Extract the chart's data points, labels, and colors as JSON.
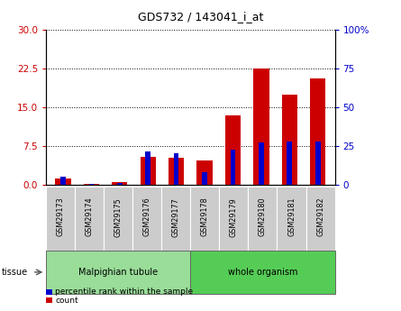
{
  "title": "GDS732 / 143041_i_at",
  "samples": [
    "GSM29173",
    "GSM29174",
    "GSM29175",
    "GSM29176",
    "GSM29177",
    "GSM29178",
    "GSM29179",
    "GSM29180",
    "GSM29181",
    "GSM29182"
  ],
  "count_values": [
    1.2,
    0.3,
    0.5,
    5.5,
    5.2,
    4.8,
    13.5,
    22.5,
    17.5,
    20.5
  ],
  "percentile_values": [
    5.5,
    1.0,
    1.5,
    21.5,
    20.5,
    8.0,
    22.5,
    27.5,
    28.0,
    28.0
  ],
  "left_ylim": [
    0,
    30
  ],
  "right_ylim": [
    0,
    100
  ],
  "left_yticks": [
    0,
    7.5,
    15,
    22.5,
    30
  ],
  "right_yticks": [
    0,
    25,
    50,
    75,
    100
  ],
  "right_yticklabels": [
    "0",
    "25",
    "50",
    "75",
    "100%"
  ],
  "left_ytick_color": "#cc0000",
  "right_ytick_color": "#0000cc",
  "bar_color_count": "#cc0000",
  "bar_color_pct": "#0000cc",
  "count_bar_width": 0.55,
  "pct_bar_width": 0.18,
  "tissue_groups": [
    {
      "label": "Malpighian tubule",
      "start": 0,
      "end": 4,
      "color": "#99dd99"
    },
    {
      "label": "whole organism",
      "start": 5,
      "end": 9,
      "color": "#55cc55"
    }
  ],
  "tissue_label": "tissue",
  "grid_color": "black",
  "grid_linestyle": "dotted",
  "background_color": "white",
  "plot_bg_color": "white",
  "legend_items": [
    {
      "label": "count",
      "color": "#cc0000"
    },
    {
      "label": "percentile rank within the sample",
      "color": "#0000cc"
    }
  ],
  "title_fontsize": 9,
  "tick_fontsize": 7.5,
  "label_fontsize": 7
}
